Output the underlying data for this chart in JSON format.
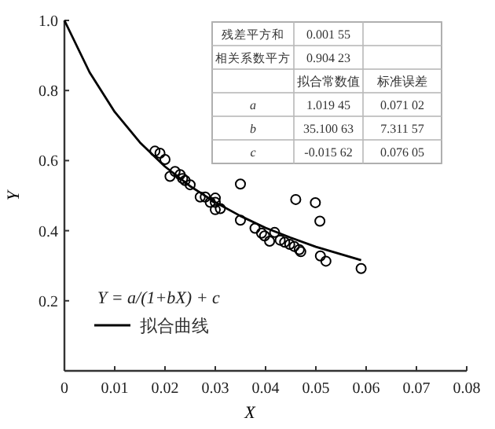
{
  "chart_data": {
    "type": "scatter",
    "xlabel": "X",
    "ylabel": "Y",
    "xlim": [
      0,
      0.08
    ],
    "ylim": [
      0,
      1
    ],
    "xticks": [
      0,
      0.01,
      0.02,
      0.03,
      0.04,
      0.05,
      0.06,
      0.07,
      0.08
    ],
    "yticks": [
      {
        "value": 0,
        "label": null
      },
      0.2,
      0.4,
      0.6,
      0.8,
      {
        "value": 1,
        "label": "1.0"
      }
    ],
    "grid": false,
    "legend": "bottom left",
    "marker": "circle",
    "series": [
      {
        "color": "#000000",
        "x": [
          0.018,
          0.019,
          0.02,
          0.021,
          0.022,
          0.023,
          0.0235,
          0.024,
          0.025,
          0.027,
          0.028,
          0.029,
          0.03,
          0.03,
          0.03,
          0.031,
          0.035,
          0.035,
          0.0379,
          0.0392,
          0.0398,
          0.0408,
          0.0418,
          0.0429,
          0.0438,
          0.0448,
          0.0457,
          0.0467,
          0.047,
          0.046,
          0.0499,
          0.0508,
          0.0509,
          0.052,
          0.059
        ],
        "values": [
          0.627,
          0.621,
          0.603,
          0.555,
          0.569,
          0.56,
          0.549,
          0.543,
          0.531,
          0.496,
          0.496,
          0.481,
          0.493,
          0.481,
          0.46,
          0.463,
          0.533,
          0.43,
          0.407,
          0.393,
          0.385,
          0.37,
          0.395,
          0.373,
          0.367,
          0.361,
          0.355,
          0.346,
          0.34,
          0.489,
          0.48,
          0.427,
          0.328,
          0.313,
          0.292
        ]
      },
      {
        "type": "line",
        "name": "拟合曲线",
        "color": "#000000",
        "line_style": "solid",
        "marker": "none",
        "x": [
          0,
          0.005,
          0.01,
          0.015,
          0.02,
          0.025,
          0.03,
          0.035,
          0.04,
          0.045,
          0.05,
          0.059
        ],
        "values": [
          1.0,
          0.852,
          0.739,
          0.652,
          0.583,
          0.527,
          0.481,
          0.442,
          0.408,
          0.38,
          0.354,
          0.316
        ]
      }
    ],
    "annotations": [
      "残差平方和",
      "0.001 55",
      "相关系数平方",
      "0.904 23",
      "拟合常数值",
      "标准误差",
      "a",
      "1.019 45",
      "0.071 02",
      "b",
      "35.100 63",
      "7.311 57",
      "c",
      "-0.015 62",
      "0.076 05",
      "Y = a/(1+bX) + c"
    ]
  }
}
